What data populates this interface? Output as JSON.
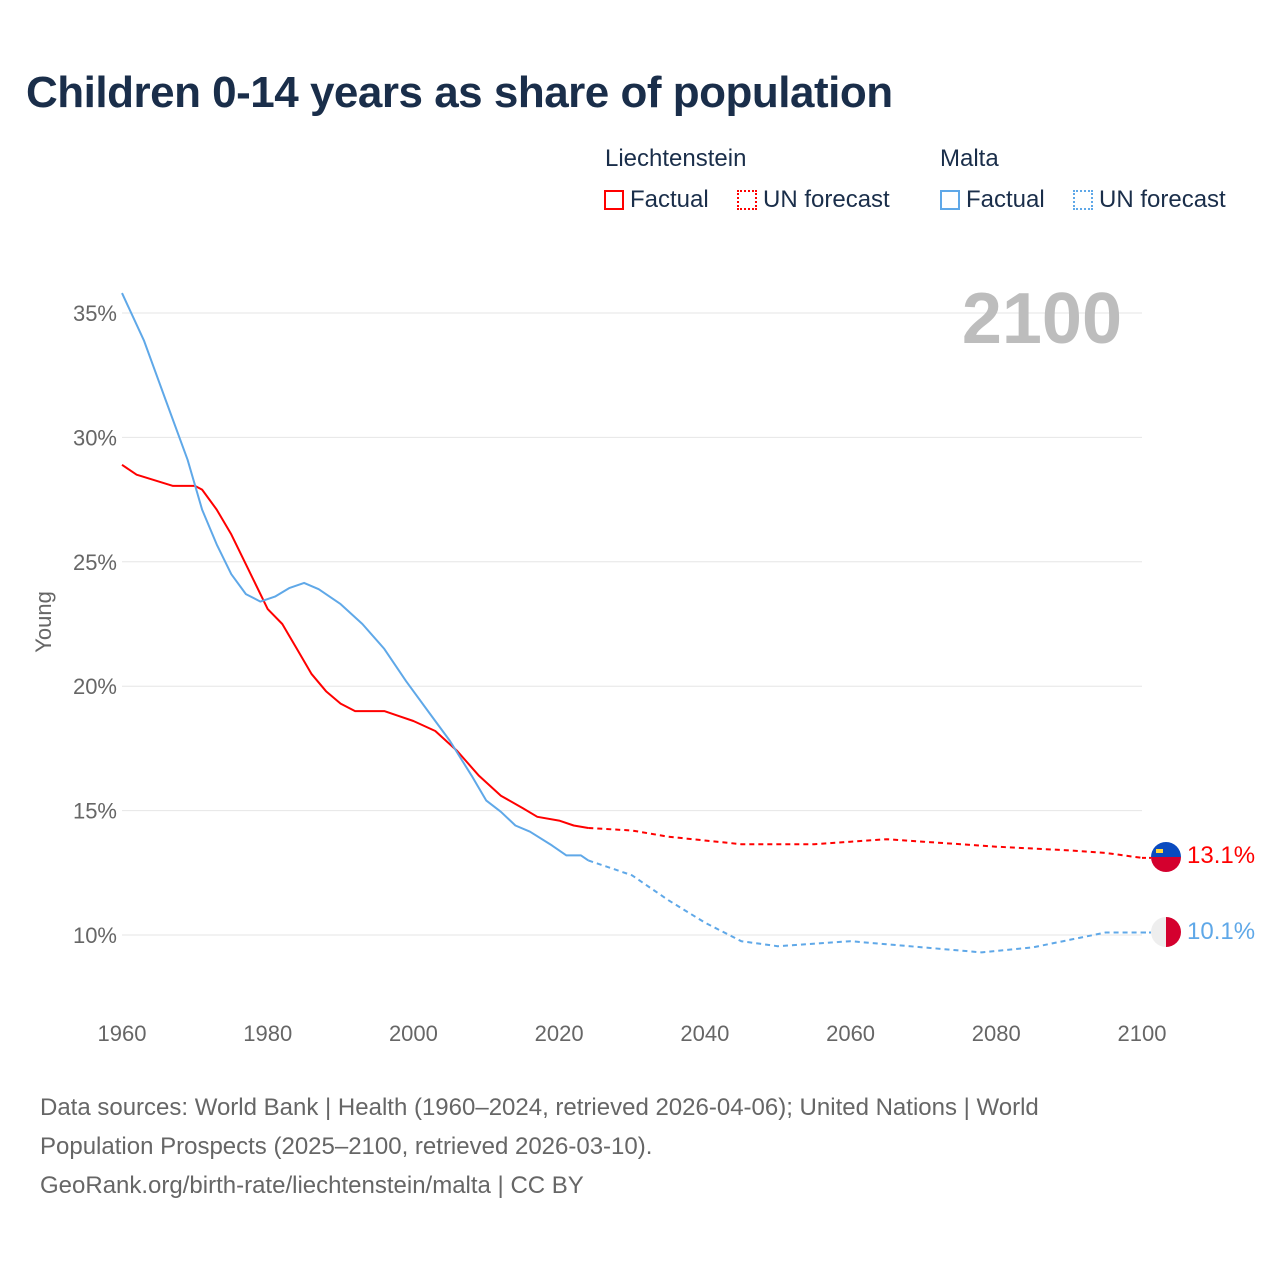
{
  "title": "Children 0-14 years as share of population",
  "legend": {
    "groups": [
      {
        "country": "Liechtenstein",
        "factual": "Factual",
        "forecast": "UN forecast",
        "color": "#ff0000"
      },
      {
        "country": "Malta",
        "factual": "Factual",
        "forecast": "UN forecast",
        "color": "#5fa8e8"
      }
    ]
  },
  "watermark_year": "2100",
  "end_labels": {
    "liechtenstein": "13.1%",
    "malta": "10.1%"
  },
  "flags": {
    "liechtenstein": "liechtenstein-flag-icon",
    "malta": "malta-flag-icon"
  },
  "source_lines": [
    "Data sources: World Bank | Health (1960–2024, retrieved 2026-04-06); United Nations | World",
    "Population Prospects (2025–2100, retrieved 2026-03-10).",
    "GeoRank.org/birth-rate/liechtenstein/malta | CC BY"
  ],
  "chart_data": {
    "type": "line",
    "title": "Children 0-14 years as share of population",
    "xlabel": "",
    "ylabel": "Young",
    "xlim": [
      1960,
      2100
    ],
    "ylim": [
      7.5,
      37
    ],
    "xticks": [
      1960,
      1980,
      2000,
      2020,
      2040,
      2060,
      2080,
      2100
    ],
    "xtick_labels": [
      "1960",
      "1980",
      "2000",
      "2020",
      "2040",
      "2060",
      "2080",
      "2100"
    ],
    "yticks": [
      10,
      15,
      20,
      25,
      30,
      35
    ],
    "ytick_labels": [
      "10%",
      "15%",
      "20%",
      "25%",
      "30%",
      "35%"
    ],
    "grid": true,
    "legend_position": "top-right",
    "series": [
      {
        "name": "Liechtenstein Factual",
        "color": "#ff0000",
        "dash": false,
        "x": [
          1960,
          1962,
          1967,
          1970,
          1971,
          1973,
          1975,
          1977,
          1980,
          1982,
          1984,
          1986,
          1988,
          1990,
          1992,
          1996,
          1998,
          2000,
          2003,
          2006,
          2009,
          2012,
          2015,
          2017,
          2020,
          2022,
          2024
        ],
        "y": [
          28.9,
          28.5,
          28.05,
          28.05,
          27.9,
          27.1,
          26.1,
          24.9,
          23.1,
          22.5,
          21.5,
          20.5,
          19.8,
          19.3,
          19.0,
          19.0,
          18.8,
          18.6,
          18.2,
          17.4,
          16.4,
          15.6,
          15.1,
          14.75,
          14.6,
          14.4,
          14.3
        ]
      },
      {
        "name": "Liechtenstein UN forecast",
        "color": "#ff0000",
        "dash": true,
        "x": [
          2024,
          2030,
          2035,
          2040,
          2045,
          2055,
          2060,
          2065,
          2070,
          2080,
          2090,
          2095,
          2100
        ],
        "y": [
          14.3,
          14.2,
          13.95,
          13.8,
          13.65,
          13.65,
          13.75,
          13.85,
          13.75,
          13.55,
          13.4,
          13.3,
          13.1
        ]
      },
      {
        "name": "Malta Factual",
        "color": "#5fa8e8",
        "dash": false,
        "x": [
          1960,
          1963,
          1966,
          1969,
          1971,
          1973,
          1975,
          1977,
          1979,
          1981,
          1983,
          1985,
          1987,
          1990,
          1993,
          1996,
          1999,
          2002,
          2005,
          2008,
          2010,
          2012,
          2014,
          2016,
          2019,
          2021,
          2023,
          2024
        ],
        "y": [
          35.8,
          33.9,
          31.5,
          29.1,
          27.1,
          25.7,
          24.5,
          23.7,
          23.4,
          23.6,
          23.95,
          24.15,
          23.9,
          23.3,
          22.5,
          21.5,
          20.2,
          19.0,
          17.8,
          16.4,
          15.4,
          14.95,
          14.4,
          14.15,
          13.6,
          13.2,
          13.2,
          13.0
        ]
      },
      {
        "name": "Malta UN forecast",
        "color": "#5fa8e8",
        "dash": true,
        "x": [
          2024,
          2030,
          2035,
          2040,
          2045,
          2050,
          2060,
          2070,
          2078,
          2085,
          2095,
          2100
        ],
        "y": [
          13.0,
          12.4,
          11.4,
          10.5,
          9.75,
          9.55,
          9.75,
          9.5,
          9.3,
          9.5,
          10.1,
          10.1
        ]
      }
    ]
  }
}
